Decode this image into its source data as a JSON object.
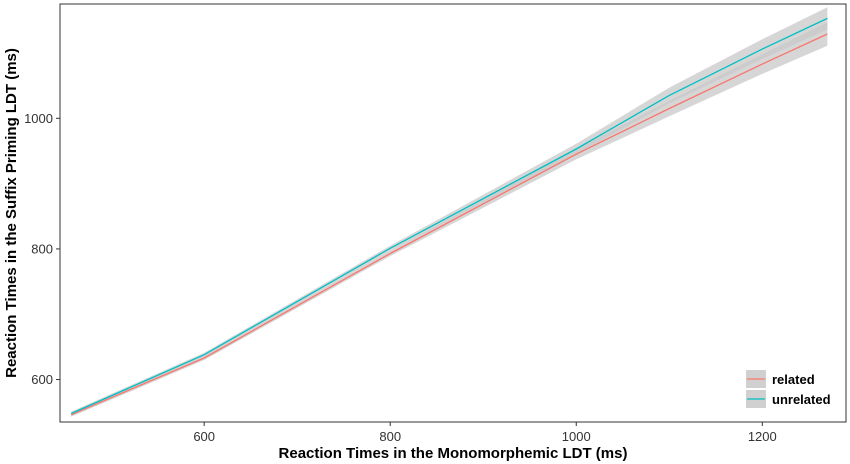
{
  "chart_data": {
    "type": "line",
    "xlabel": "Reaction Times in the Monomorphemic LDT (ms)",
    "ylabel": "Reaction Times in the Suffix Priming LDT (ms)",
    "xlim": [
      445,
      1290
    ],
    "ylim": [
      535,
      1175
    ],
    "x_ticks": [
      600,
      800,
      1000,
      1200
    ],
    "y_ticks": [
      600,
      800,
      1000
    ],
    "grid": false,
    "legend_position": "bottom-right",
    "confidence_band": true,
    "colors": {
      "related": "#F8766D",
      "unrelated": "#00BFC4",
      "band": "#C8C8C8"
    },
    "series": [
      {
        "name": "related",
        "color": "#F8766D",
        "x": [
          457,
          600,
          800,
          1000,
          1100,
          1200,
          1270
        ],
        "y": [
          546,
          633,
          793,
          945,
          1015,
          1083,
          1129
        ],
        "low": [
          543,
          630,
          789,
          937,
          1003,
          1068,
          1111
        ],
        "high": [
          549,
          636,
          797,
          953,
          1027,
          1098,
          1147
        ]
      },
      {
        "name": "unrelated",
        "color": "#00BFC4",
        "x": [
          457,
          600,
          800,
          1000,
          1100,
          1200,
          1270
        ],
        "y": [
          548,
          638,
          801,
          953,
          1035,
          1106,
          1153
        ],
        "low": [
          545,
          635,
          797,
          945,
          1023,
          1091,
          1136
        ],
        "high": [
          551,
          641,
          805,
          961,
          1047,
          1121,
          1170
        ]
      }
    ]
  }
}
